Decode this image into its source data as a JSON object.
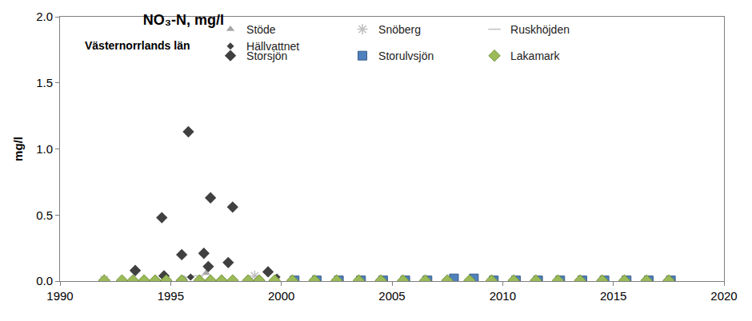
{
  "chart_data": {
    "type": "scatter",
    "title": "NO₃-N, mg/l",
    "subtitle": "Västernorrlands län",
    "y_label": "mg/l",
    "xlim": [
      1990,
      2020
    ],
    "xticks": [
      1990,
      1995,
      2000,
      2005,
      2010,
      2015,
      2020
    ],
    "ylim": [
      0,
      2
    ],
    "yticks": [
      {
        "value": 0,
        "label": "0.0"
      },
      {
        "value": 0.5,
        "label": "0.5"
      },
      {
        "value": 1,
        "label": "1.0"
      },
      {
        "value": 1.5,
        "label": "1.5"
      },
      {
        "value": 2,
        "label": "2.0"
      }
    ],
    "grid": false,
    "legend": "top right",
    "series": [
      {
        "name": "Stöde",
        "color": "#a6a6a6",
        "marker": "triangle-up",
        "x": [
          1995.6,
          1996.6
        ],
        "values": [
          0.02,
          0.06
        ]
      },
      {
        "name": "Snöberg",
        "color": "#bfbfbf",
        "marker": "asterisk",
        "x": [
          1992.0,
          1998.8
        ],
        "values": [
          0.01,
          0.04
        ]
      },
      {
        "name": "Ruskhöjden",
        "color": "#bfbfbf",
        "marker": "line-ew",
        "x": [
          1995.8,
          1996.2
        ],
        "values": [
          0.03,
          0.04
        ]
      },
      {
        "name": "Hällvattnet",
        "color": "#404040",
        "marker": "diamond-small",
        "x": [
          1995.9,
          1999.8
        ],
        "values": [
          0.03,
          0.03
        ]
      },
      {
        "name": "Storsjön",
        "color": "#404040",
        "marker": "diamond",
        "x": [
          1993.4,
          1994.6,
          1994.7,
          1995.5,
          1995.8,
          1996.5,
          1996.7,
          1996.8,
          1997.6,
          1997.8,
          1999.4
        ],
        "values": [
          0.08,
          0.48,
          0.04,
          0.2,
          1.13,
          0.21,
          0.11,
          0.63,
          0.14,
          0.56,
          0.07
        ]
      },
      {
        "name": "Storulvsjön",
        "color": "#4f81bd",
        "marker": "square",
        "x": [
          2000.6,
          2001.6,
          2002.6,
          2003.6,
          2004.6,
          2005.6,
          2006.6,
          2007.8,
          2008.7,
          2009.6,
          2010.6,
          2011.6,
          2012.6,
          2013.6,
          2014.6,
          2015.6,
          2016.6,
          2017.6
        ],
        "values": [
          0.005,
          0.005,
          0.005,
          0.005,
          0.005,
          0.005,
          0.005,
          0.02,
          0.02,
          0.005,
          0.005,
          0.005,
          0.005,
          0.005,
          0.005,
          0.005,
          0.005,
          0.005
        ]
      },
      {
        "name": "Lakamark",
        "color": "#9bbb59",
        "marker": "diamond",
        "x": [
          1992.0,
          1992.8,
          1993.3,
          1993.8,
          1994.3,
          1994.8,
          1995.5,
          1996.3,
          1996.8,
          1997.3,
          1997.8,
          1998.5,
          1999.0,
          1999.7,
          2000.5,
          2001.5,
          2002.5,
          2003.5,
          2004.5,
          2005.5,
          2006.5,
          2007.5,
          2008.5,
          2009.5,
          2010.5,
          2011.5,
          2012.5,
          2013.5,
          2014.5,
          2015.5,
          2016.5,
          2017.5
        ],
        "values": [
          0.005,
          0.005,
          0.005,
          0.005,
          0.005,
          0.005,
          0.005,
          0.005,
          0.005,
          0.005,
          0.005,
          0.005,
          0.005,
          0.005,
          0.005,
          0.005,
          0.005,
          0.005,
          0.005,
          0.005,
          0.005,
          0.005,
          0.005,
          0.005,
          0.005,
          0.005,
          0.005,
          0.005,
          0.005,
          0.005,
          0.005,
          0.005
        ]
      }
    ]
  }
}
